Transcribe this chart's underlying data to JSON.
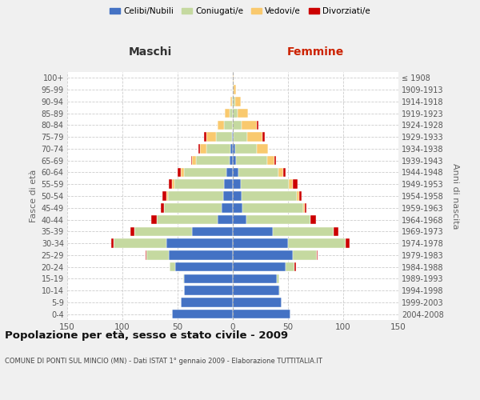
{
  "age_groups": [
    "0-4",
    "5-9",
    "10-14",
    "15-19",
    "20-24",
    "25-29",
    "30-34",
    "35-39",
    "40-44",
    "45-49",
    "50-54",
    "55-59",
    "60-64",
    "65-69",
    "70-74",
    "75-79",
    "80-84",
    "85-89",
    "90-94",
    "95-99",
    "100+"
  ],
  "birth_years": [
    "2004-2008",
    "1999-2003",
    "1994-1998",
    "1989-1993",
    "1984-1988",
    "1979-1983",
    "1974-1978",
    "1969-1973",
    "1964-1968",
    "1959-1963",
    "1954-1958",
    "1949-1953",
    "1944-1948",
    "1939-1943",
    "1934-1938",
    "1929-1933",
    "1924-1928",
    "1919-1923",
    "1914-1918",
    "1909-1913",
    "≤ 1908"
  ],
  "males": {
    "celibi": [
      55,
      47,
      44,
      44,
      52,
      58,
      60,
      37,
      14,
      10,
      9,
      8,
      6,
      3,
      2,
      1,
      0,
      0,
      0,
      0,
      0
    ],
    "coniugati": [
      0,
      0,
      0,
      1,
      5,
      20,
      48,
      52,
      55,
      52,
      50,
      45,
      38,
      30,
      22,
      14,
      8,
      3,
      1,
      0,
      0
    ],
    "vedovi": [
      0,
      0,
      0,
      0,
      0,
      0,
      0,
      0,
      0,
      0,
      1,
      2,
      3,
      4,
      6,
      9,
      6,
      4,
      1,
      0,
      0
    ],
    "divorziati": [
      0,
      0,
      0,
      0,
      0,
      1,
      2,
      4,
      5,
      3,
      4,
      3,
      3,
      1,
      1,
      2,
      0,
      0,
      0,
      0,
      0
    ]
  },
  "females": {
    "nubili": [
      52,
      44,
      42,
      40,
      48,
      54,
      50,
      36,
      12,
      9,
      8,
      7,
      5,
      3,
      2,
      1,
      0,
      0,
      0,
      0,
      0
    ],
    "coniugate": [
      0,
      0,
      1,
      2,
      8,
      22,
      52,
      55,
      58,
      55,
      50,
      44,
      36,
      28,
      20,
      12,
      8,
      4,
      2,
      1,
      0
    ],
    "vedove": [
      0,
      0,
      0,
      0,
      0,
      0,
      0,
      0,
      0,
      1,
      2,
      3,
      5,
      7,
      10,
      14,
      14,
      10,
      5,
      2,
      1
    ],
    "divorziate": [
      0,
      0,
      0,
      0,
      1,
      1,
      4,
      5,
      5,
      2,
      2,
      5,
      2,
      1,
      0,
      2,
      1,
      0,
      0,
      0,
      0
    ]
  },
  "colors": {
    "celibi_nubili": "#4472c4",
    "coniugati": "#c5d9a0",
    "vedovi": "#f9c96e",
    "divorziati": "#cc0000"
  },
  "title": "Popolazione per età, sesso e stato civile - 2009",
  "subtitle": "COMUNE DI PONTI SUL MINCIO (MN) - Dati ISTAT 1° gennaio 2009 - Elaborazione TUTTITALIA.IT",
  "xlabel_left": "Maschi",
  "xlabel_right": "Femmine",
  "ylabel_left": "Fasce di età",
  "ylabel_right": "Anni di nascita",
  "xlim": 150,
  "legend_labels": [
    "Celibi/Nubili",
    "Coniugati/e",
    "Vedovi/e",
    "Divorziati/e"
  ],
  "bg_color": "#f0f0f0",
  "plot_bg": "#ffffff"
}
